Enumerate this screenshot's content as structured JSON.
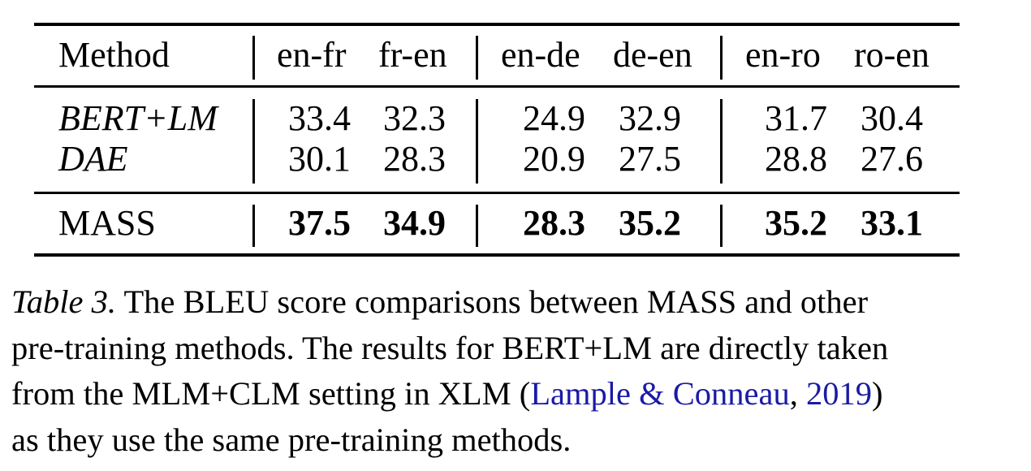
{
  "table": {
    "header": {
      "method": "Method",
      "pairs": [
        "en-fr",
        "fr-en",
        "en-de",
        "de-en",
        "en-ro",
        "ro-en"
      ]
    },
    "rows": [
      {
        "method": "BERT+LM",
        "values": [
          "33.4",
          "32.3",
          "24.9",
          "32.9",
          "31.7",
          "30.4"
        ]
      },
      {
        "method": "DAE",
        "values": [
          "30.1",
          "28.3",
          "20.9",
          "27.5",
          "28.8",
          "27.6"
        ]
      },
      {
        "method": "MASS",
        "values": [
          "37.5",
          "34.9",
          "28.3",
          "35.2",
          "35.2",
          "33.1"
        ]
      }
    ]
  },
  "caption": {
    "label": "Table 3.",
    "line1_rest": " The BLEU score comparisons between MASS and other",
    "line2": "pre-training methods. The results for BERT+LM are directly taken",
    "line3_before": "from the MLM+CLM setting in XLM (",
    "cite_authors": "Lample & Conneau",
    "cite_sep": ", ",
    "cite_year": "2019",
    "line3_after": ")",
    "line4": "as they use the same pre-training methods."
  },
  "colors": {
    "citation": "#1a1aa6"
  }
}
